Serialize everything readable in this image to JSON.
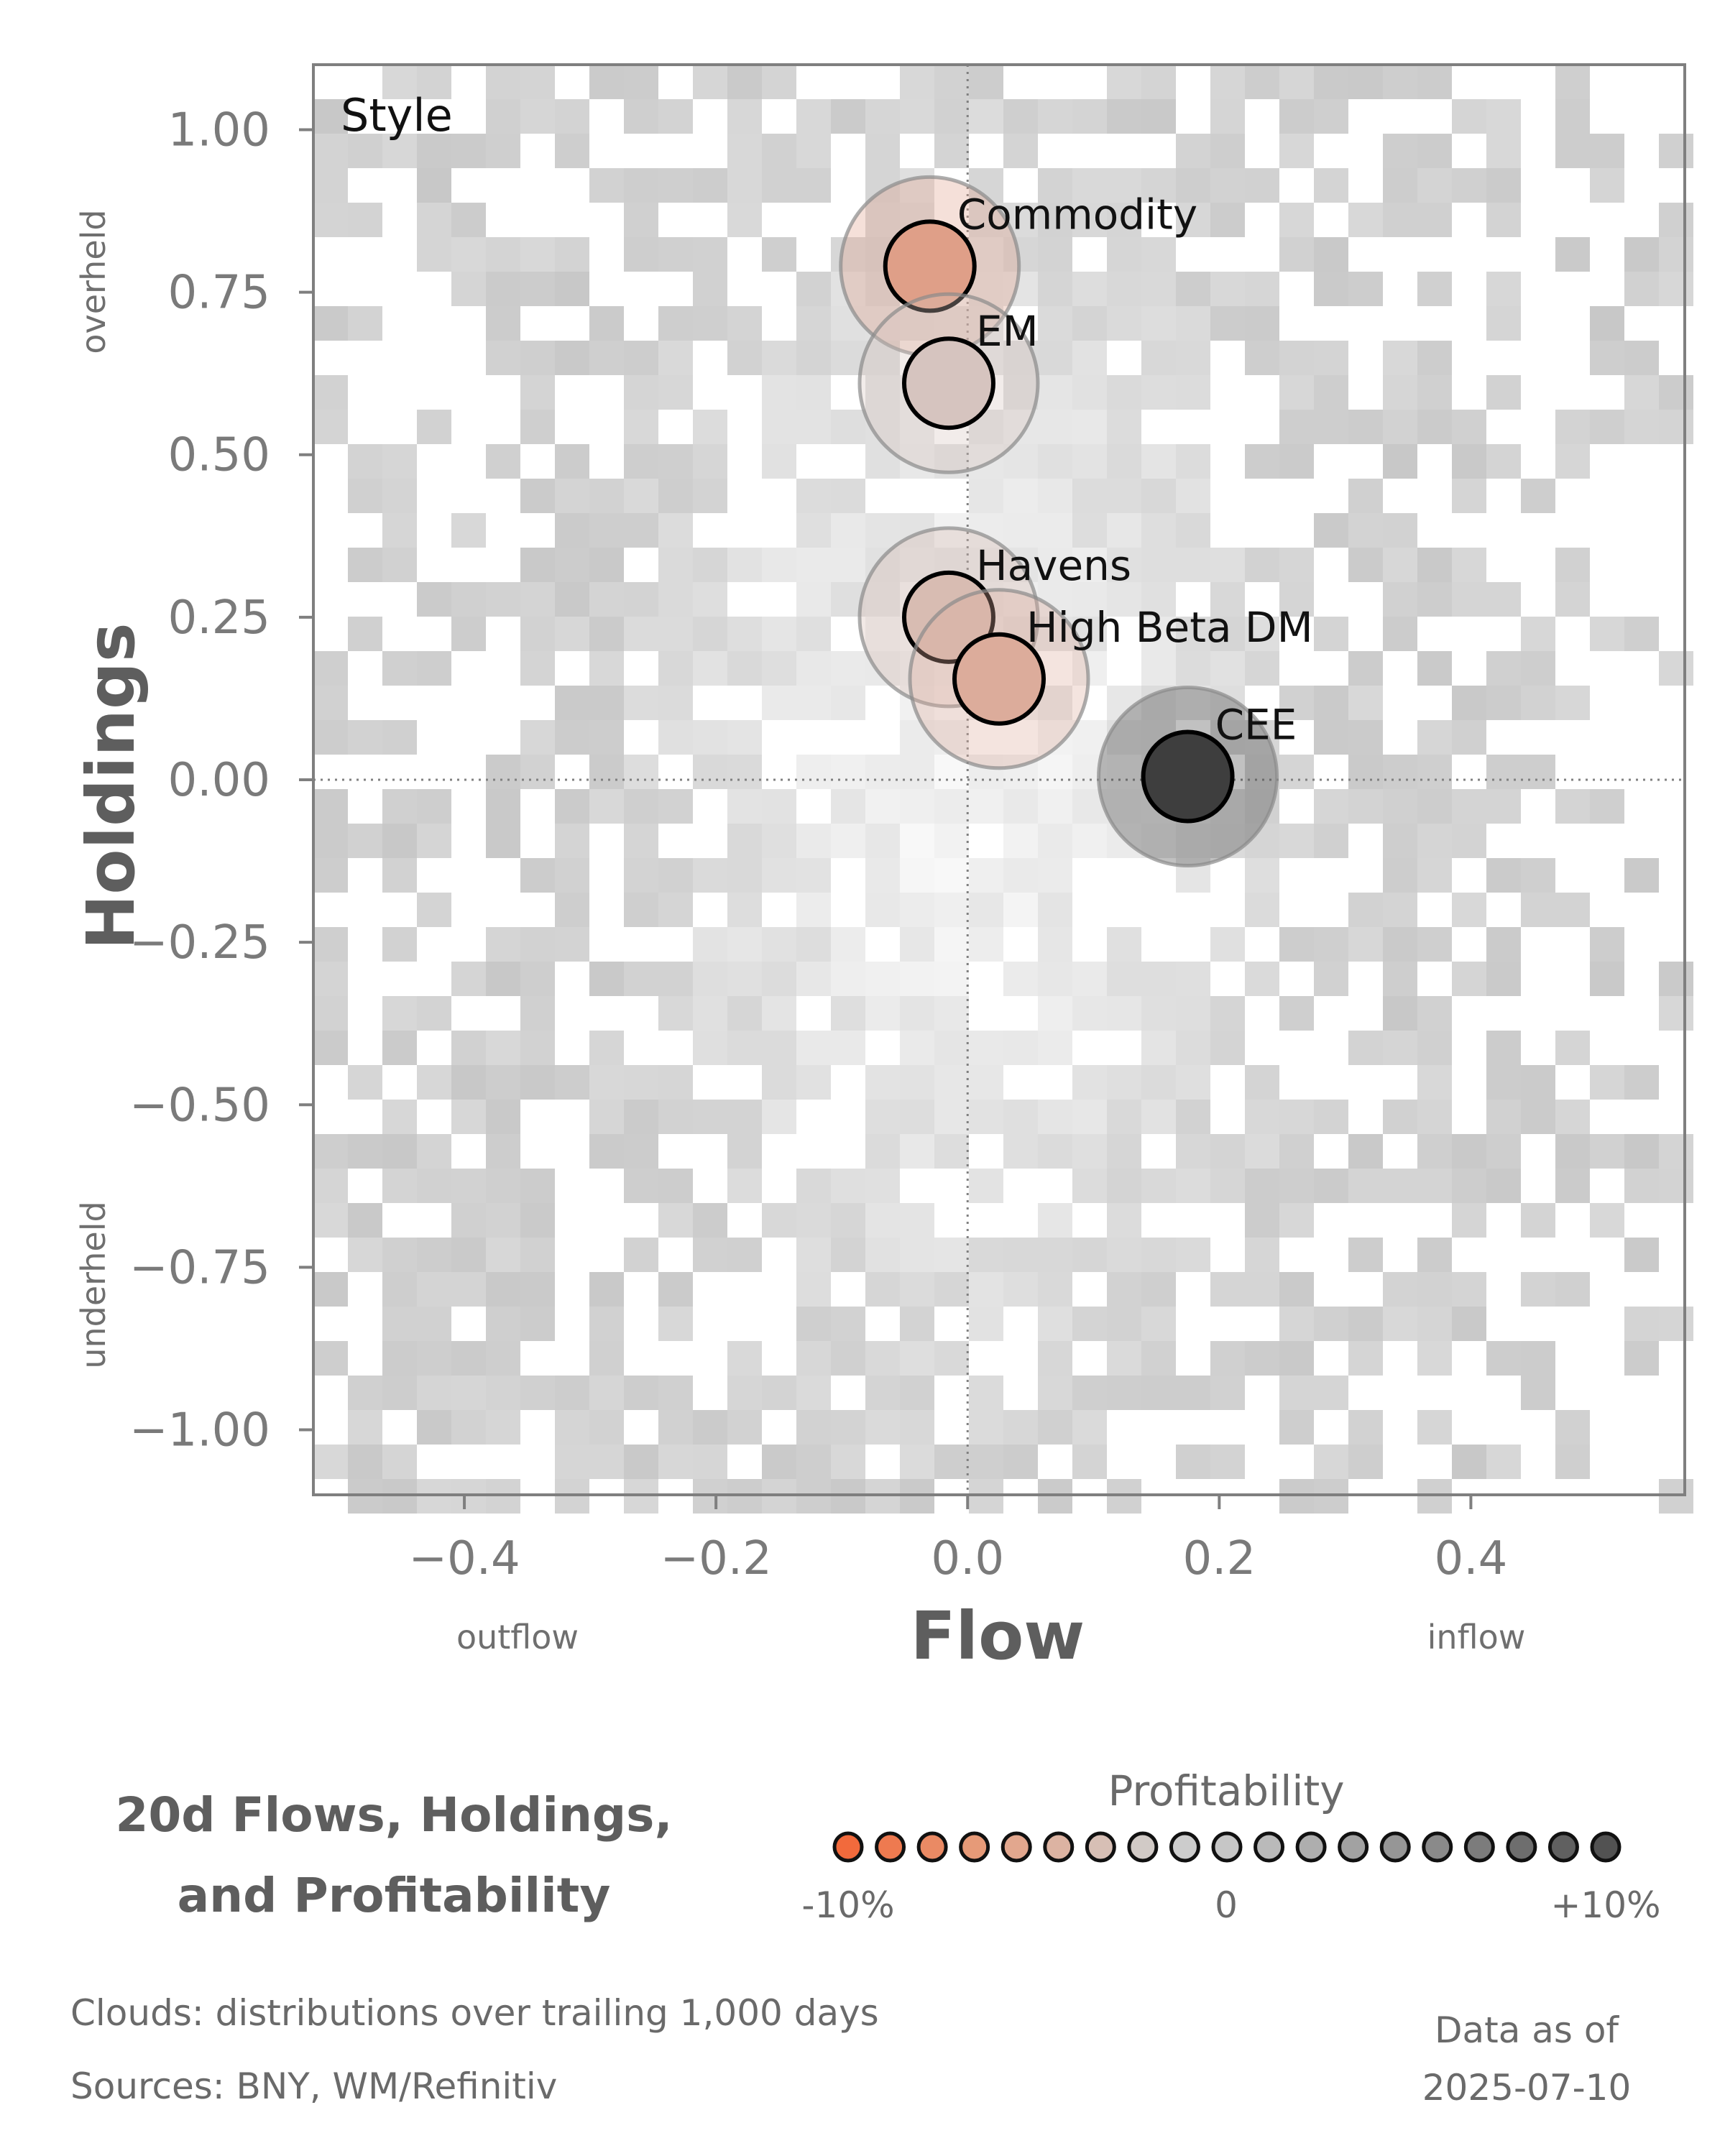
{
  "chart_data": {
    "type": "scatter",
    "panel_label": "Style",
    "xlabel": "Flow",
    "ylabel": "Holdings",
    "xlim": [
      -0.52,
      0.57
    ],
    "ylim": [
      -1.1,
      1.1
    ],
    "x_ticks": [
      -0.4,
      -0.2,
      0.0,
      0.2,
      0.4
    ],
    "x_tick_labels": [
      "−0.4",
      "−0.2",
      "0.0",
      "0.2",
      "0.4"
    ],
    "y_ticks": [
      1.0,
      0.75,
      0.5,
      0.25,
      0.0,
      -0.25,
      -0.5,
      -0.75,
      -1.0
    ],
    "y_tick_labels": [
      "1.00",
      "0.75",
      "0.50",
      "0.25",
      "0.00",
      "−0.25",
      "−0.50",
      "−0.75",
      "−1.00"
    ],
    "x_side_labels": {
      "low": "outflow",
      "high": "inflow"
    },
    "y_side_labels": {
      "high": "overheld",
      "low": "underheld"
    },
    "reference_lines": {
      "x": 0,
      "y": 0
    },
    "series": [
      {
        "label": "Commodity",
        "x": -0.03,
        "y": 0.79,
        "profitability": -0.05,
        "color": "#df9f88"
      },
      {
        "label": "EM",
        "x": -0.015,
        "y": 0.61,
        "profitability": -0.005,
        "color": "#d6c4bf"
      },
      {
        "label": "Havens",
        "x": -0.015,
        "y": 0.25,
        "profitability": -0.02,
        "color": "#d8bcb2"
      },
      {
        "label": "High Beta DM",
        "x": 0.025,
        "y": 0.155,
        "profitability": -0.04,
        "color": "#dcac9b"
      },
      {
        "label": "CEE",
        "x": 0.175,
        "y": 0.005,
        "profitability": 0.1,
        "color": "#3e3e3e"
      }
    ],
    "cloud_description": "Clouds:  distributions over trailing 1,000 days",
    "legend": {
      "title": "Profitability",
      "tick_labels": [
        "-10%",
        "0",
        "+10%"
      ],
      "colors": [
        "#f26a3c",
        "#ee7a50",
        "#ea8a64",
        "#e69a78",
        "#e2a78e",
        "#dcb3a2",
        "#d7bfb5",
        "#d1cac6",
        "#cccccc",
        "#c6c6c6",
        "#bababa",
        "#aeaeae",
        "#a2a2a2",
        "#969696",
        "#8a8a8a",
        "#7c7c7c",
        "#6e6e6e",
        "#606060",
        "#525252"
      ]
    }
  },
  "caption": {
    "line1": "20d Flows, Holdings,",
    "line2": "and Profitability"
  },
  "footer": {
    "clouds": "Clouds:  distributions over trailing 1,000 days",
    "sources": "Sources:  BNY, WM/Refinitiv",
    "asof_label": "Data as of",
    "asof_date": "2025-07-10"
  }
}
